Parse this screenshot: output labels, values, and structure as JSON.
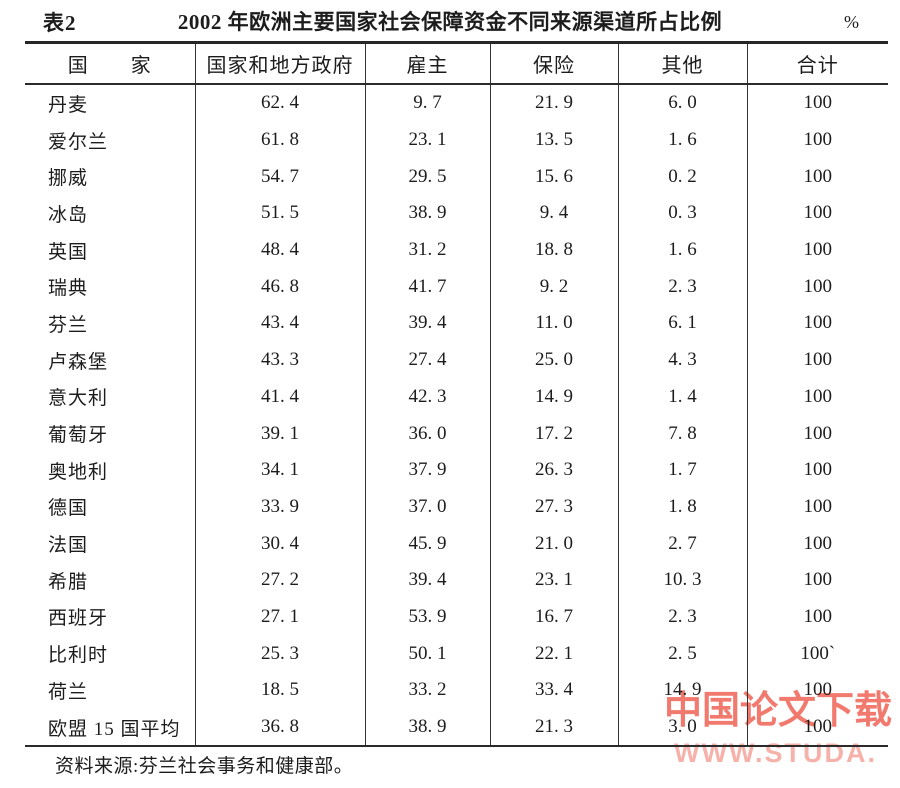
{
  "header": {
    "table_label": "表2",
    "title": "2002 年欧洲主要国家社会保障资金不同来源渠道所占比例",
    "unit": "%"
  },
  "table": {
    "columns": [
      "国　　家",
      "国家和地方政府",
      "雇主",
      "保险",
      "其他",
      "合计"
    ],
    "rows": [
      {
        "cells": [
          "丹麦",
          "62. 4",
          "9. 7",
          "21. 9",
          "6. 0",
          "100"
        ]
      },
      {
        "cells": [
          "爱尔兰",
          "61. 8",
          "23. 1",
          "13. 5",
          "1. 6",
          "100"
        ]
      },
      {
        "cells": [
          "挪威",
          "54. 7",
          "29. 5",
          "15. 6",
          "0. 2",
          "100"
        ]
      },
      {
        "cells": [
          "冰岛",
          "51. 5",
          "38. 9",
          "9. 4",
          "0. 3",
          "100"
        ]
      },
      {
        "cells": [
          "英国",
          "48. 4",
          "31. 2",
          "18. 8",
          "1. 6",
          "100"
        ]
      },
      {
        "cells": [
          "瑞典",
          "46. 8",
          "41. 7",
          "9. 2",
          "2. 3",
          "100"
        ]
      },
      {
        "cells": [
          "芬兰",
          "43. 4",
          "39. 4",
          "11. 0",
          "6. 1",
          "100"
        ]
      },
      {
        "cells": [
          "卢森堡",
          "43. 3",
          "27. 4",
          "25. 0",
          "4. 3",
          "100"
        ]
      },
      {
        "cells": [
          "意大利",
          "41. 4",
          "42. 3",
          "14. 9",
          "1. 4",
          "100"
        ]
      },
      {
        "cells": [
          "葡萄牙",
          "39. 1",
          "36. 0",
          "17. 2",
          "7. 8",
          "100"
        ]
      },
      {
        "cells": [
          "奥地利",
          "34. 1",
          "37. 9",
          "26. 3",
          "1. 7",
          "100"
        ]
      },
      {
        "cells": [
          "德国",
          "33. 9",
          "37. 0",
          "27. 3",
          "1. 8",
          "100"
        ]
      },
      {
        "cells": [
          "法国",
          "30. 4",
          "45. 9",
          "21. 0",
          "2. 7",
          "100"
        ]
      },
      {
        "cells": [
          "希腊",
          "27. 2",
          "39. 4",
          "23. 1",
          "10. 3",
          "100"
        ]
      },
      {
        "cells": [
          "西班牙",
          "27. 1",
          "53. 9",
          "16. 7",
          "2. 3",
          "100"
        ]
      },
      {
        "cells": [
          "比利时",
          "25. 3",
          "50. 1",
          "22. 1",
          "2. 5",
          "100`"
        ]
      },
      {
        "cells": [
          "荷兰",
          "18. 5",
          "33. 2",
          "33. 4",
          "14. 9",
          "100"
        ]
      },
      {
        "cells": [
          "欧盟 15 国平均",
          "36. 8",
          "38. 9",
          "21. 3",
          "3. 0",
          "100"
        ]
      }
    ]
  },
  "footer": {
    "source_note": "资料来源:芬兰社会事务和健康部。"
  },
  "watermark": {
    "line1": "中国论文下载",
    "line2": "WWW.STUDA.",
    "color_primary": "#f2796e",
    "color_secondary": "#f59e95"
  }
}
